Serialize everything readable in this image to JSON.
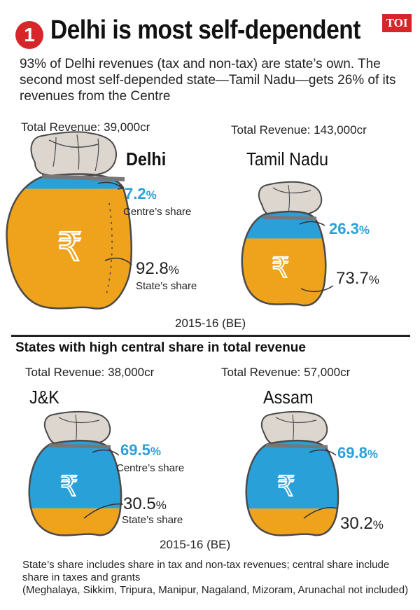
{
  "header": {
    "number": "1",
    "title": "Delhi is most self-dependent",
    "logo_text": "TOI",
    "intro": "93% of Delhi revenues (tax and non-tax) are state’s own. The second most self-depended state—Tamil Nadu—gets 26% of its revenues from the Centre"
  },
  "section2_title": "States with high central share in total revenue",
  "footnote": {
    "line1": "State’s share includes share in tax and non-tax revenues; central share include share in taxes and grants",
    "line2": "(Meghalaya, Sikkim,  Tripura, Manipur, Nagaland, Mizoram, Arunachal not included)"
  },
  "chart_data": [
    {
      "type": "bar",
      "period": "2015-16 (BE)",
      "series": [
        {
          "name": "Centre’s share",
          "color": "#2aa0d8"
        },
        {
          "name": "State’s share",
          "color": "#efa21c"
        }
      ],
      "states": [
        {
          "name": "Delhi",
          "total_revenue": "Total Revenue: 39,000cr",
          "centre": {
            "value": 7.2,
            "text": "7.2",
            "label": "Centre’s share"
          },
          "state": {
            "value": 92.8,
            "text": "92.8",
            "label": "State’s share"
          }
        },
        {
          "name": "Tamil Nadu",
          "total_revenue": "Total Revenue: 143,000cr",
          "centre": {
            "value": 26.3,
            "text": "26.3",
            "label": ""
          },
          "state": {
            "value": 73.7,
            "text": "73.7",
            "label": ""
          }
        }
      ]
    },
    {
      "type": "bar",
      "period": "2015-16 (BE)",
      "series": [
        {
          "name": "Centre’s share",
          "color": "#2aa0d8"
        },
        {
          "name": "State’s share",
          "color": "#efa21c"
        }
      ],
      "states": [
        {
          "name": "J&K",
          "total_revenue": "Total Revenue: 38,000cr",
          "centre": {
            "value": 69.5,
            "text": "69.5",
            "label": "Centre’s share"
          },
          "state": {
            "value": 30.5,
            "text": "30.5",
            "label": "State’s share"
          }
        },
        {
          "name": "Assam",
          "total_revenue": "Total Revenue: 57,000cr",
          "centre": {
            "value": 69.8,
            "text": "69.8",
            "label": ""
          },
          "state": {
            "value": 30.2,
            "text": "30.2",
            "label": ""
          }
        }
      ]
    }
  ],
  "percent_sign": "%",
  "rupee_symbol": "₹"
}
